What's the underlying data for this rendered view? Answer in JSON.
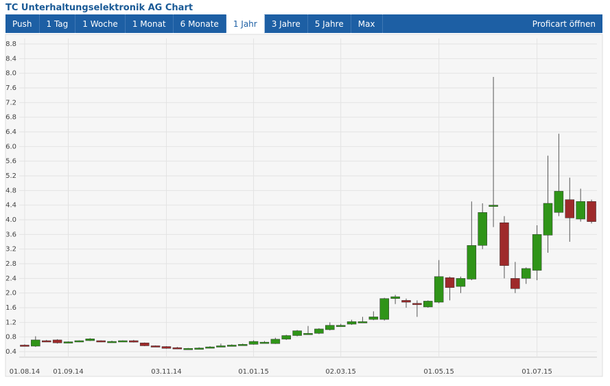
{
  "header": {
    "title": "TC Unterhaltungselektronik AG Chart",
    "tabs": [
      "Push",
      "1 Tag",
      "1 Woche",
      "1 Monat",
      "6 Monate",
      "1 Jahr",
      "3 Jahre",
      "5 Jahre",
      "Max"
    ],
    "link": "Proficart öffnen"
  },
  "chart_data": {
    "type": "candlestick",
    "categories": [
      "01.08.14",
      null,
      null,
      null,
      "01.09.14",
      null,
      null,
      null,
      null,
      null,
      null,
      null,
      null,
      "03.11.14",
      null,
      null,
      null,
      null,
      null,
      null,
      null,
      "01.01.15",
      null,
      null,
      null,
      null,
      null,
      null,
      null,
      "02.03.15",
      null,
      null,
      null,
      null,
      null,
      null,
      null,
      null,
      "01.05.15",
      null,
      null,
      null,
      null,
      null,
      null,
      null,
      null,
      "01.07.15",
      null,
      null,
      null,
      null,
      null
    ],
    "open": [
      0.58,
      0.55,
      0.7,
      0.72,
      0.66,
      0.68,
      0.7,
      0.7,
      0.68,
      0.69,
      0.7,
      0.64,
      0.56,
      0.54,
      0.51,
      0.48,
      0.5,
      0.52,
      0.56,
      0.57,
      0.58,
      0.6,
      0.65,
      0.62,
      0.74,
      0.84,
      0.9,
      0.9,
      1.0,
      1.1,
      1.15,
      1.22,
      1.28,
      1.28,
      1.85,
      1.8,
      1.72,
      1.62,
      1.75,
      2.42,
      2.18,
      2.38,
      3.3,
      4.4,
      3.92,
      2.4,
      2.4,
      2.62,
      3.58,
      4.2,
      4.55,
      4.02,
      4.5
    ],
    "high": [
      0.6,
      0.82,
      0.72,
      0.74,
      0.68,
      0.71,
      0.77,
      0.71,
      0.7,
      0.71,
      0.72,
      0.65,
      0.57,
      0.55,
      0.53,
      0.5,
      0.52,
      0.55,
      0.62,
      0.6,
      0.62,
      0.71,
      0.69,
      0.78,
      0.86,
      0.99,
      1.1,
      1.04,
      1.2,
      1.16,
      1.27,
      1.35,
      1.5,
      1.87,
      1.95,
      1.85,
      1.8,
      1.8,
      2.9,
      2.45,
      2.45,
      4.5,
      4.45,
      7.9,
      4.1,
      2.85,
      2.7,
      3.85,
      5.75,
      6.35,
      5.15,
      4.85,
      4.55
    ],
    "low": [
      0.54,
      0.53,
      0.68,
      0.62,
      0.64,
      0.66,
      0.69,
      0.66,
      0.67,
      0.68,
      0.65,
      0.55,
      0.54,
      0.48,
      0.49,
      0.47,
      0.49,
      0.51,
      0.55,
      0.56,
      0.57,
      0.59,
      0.63,
      0.61,
      0.72,
      0.82,
      0.88,
      0.88,
      0.98,
      1.08,
      1.13,
      1.2,
      1.26,
      1.25,
      1.7,
      1.6,
      1.35,
      1.6,
      1.72,
      1.8,
      2.0,
      2.35,
      3.2,
      3.8,
      2.4,
      2.0,
      2.25,
      2.35,
      3.1,
      4.1,
      3.4,
      3.95,
      3.9
    ],
    "close": [
      0.55,
      0.72,
      0.69,
      0.64,
      0.67,
      0.7,
      0.75,
      0.67,
      0.68,
      0.7,
      0.66,
      0.56,
      0.55,
      0.49,
      0.5,
      0.49,
      0.5,
      0.53,
      0.56,
      0.58,
      0.6,
      0.68,
      0.66,
      0.74,
      0.84,
      0.97,
      0.9,
      1.02,
      1.12,
      1.12,
      1.22,
      1.22,
      1.35,
      1.85,
      1.9,
      1.75,
      1.7,
      1.78,
      2.45,
      2.15,
      2.4,
      3.3,
      4.2,
      4.4,
      2.75,
      2.12,
      2.67,
      3.6,
      4.45,
      4.78,
      4.05,
      4.5,
      3.95
    ],
    "up_color": "#2f9418",
    "down_color": "#9e2a2b",
    "ylim": [
      0.25,
      8.95
    ],
    "yticks": [
      0.4,
      0.8,
      1.2,
      1.6,
      {
        "value": 2,
        "label": "2.0"
      },
      2.4,
      2.8,
      3.2,
      3.6,
      {
        "value": 4,
        "label": "4.0"
      },
      4.4,
      4.8,
      5.2,
      5.6,
      {
        "value": 6,
        "label": "6.0"
      },
      6.4,
      6.8,
      7.2,
      7.6,
      {
        "value": 8,
        "label": "8.0"
      },
      8.4,
      8.8
    ],
    "grid": true
  }
}
